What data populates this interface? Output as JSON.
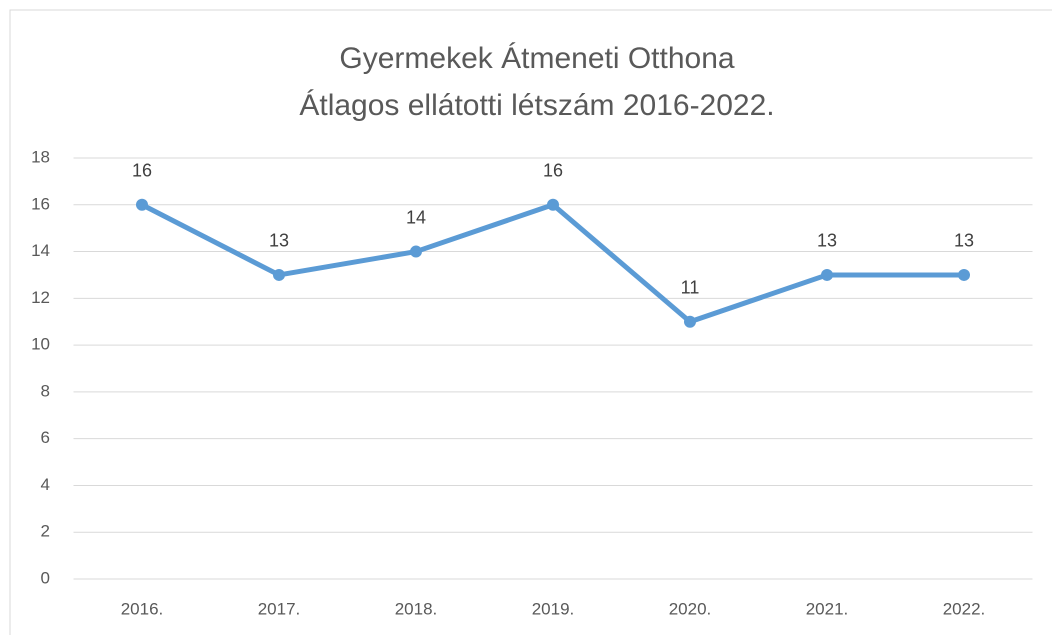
{
  "chart_data": {
    "type": "line",
    "title": "Gyermekek Átmeneti Otthona",
    "subtitle": "Átlagos ellátotti létszám 2016-2022.",
    "categories": [
      "2016.",
      "2017.",
      "2018.",
      "2019.",
      "2020.",
      "2021.",
      "2022."
    ],
    "values": [
      16,
      13,
      14,
      16,
      11,
      13,
      13
    ],
    "color": "#5b9bd5",
    "ylim": [
      0,
      18
    ],
    "yticks": [
      0,
      2,
      4,
      6,
      8,
      10,
      12,
      14,
      16,
      18
    ],
    "grid": true,
    "data_labels": true
  }
}
